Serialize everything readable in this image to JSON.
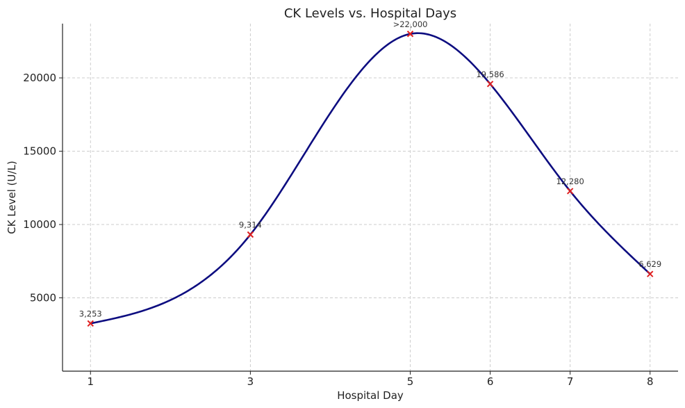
{
  "chart_data": {
    "type": "line",
    "title": "CK Levels vs. Hospital Days",
    "xlabel": "Hospital Day",
    "ylabel": "CK Level (U/L)",
    "x_ticks": [
      1,
      3,
      5,
      6,
      7,
      8
    ],
    "y_ticks": [
      5000,
      10000,
      15000,
      20000
    ],
    "x_range": [
      0.65,
      8.35
    ],
    "y_range": [
      0,
      23700
    ],
    "grid": true,
    "series": [
      {
        "x": [
          1,
          3,
          5,
          6,
          7,
          8
        ],
        "values": [
          3253,
          9314,
          23000,
          19586,
          12280,
          6629
        ],
        "labels": [
          "3,253",
          "9,314",
          ">22,000",
          "19,586",
          "12,280",
          "6,629"
        ],
        "line_color": "#0d0d80",
        "marker_color": "#e02020",
        "marker": "x",
        "smooth": true
      }
    ]
  }
}
